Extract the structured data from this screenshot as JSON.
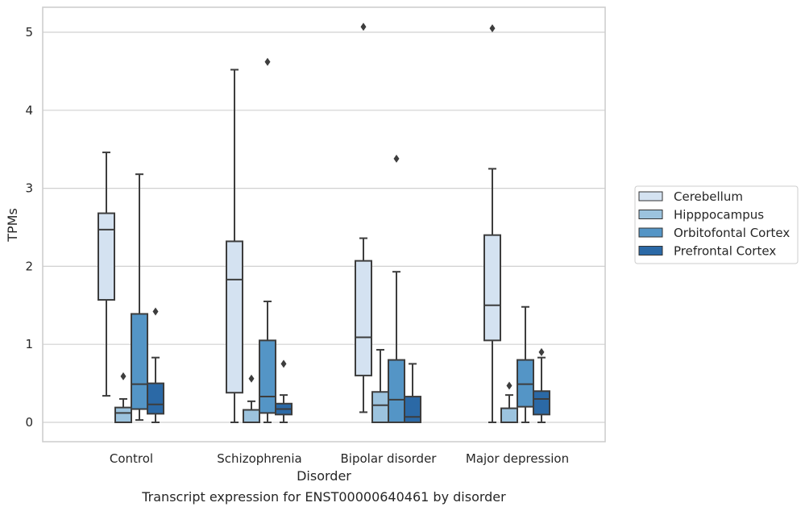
{
  "chart_data": {
    "type": "boxplot",
    "title": "",
    "caption": "Transcript expression for ENST00000640461 by disorder",
    "xlabel": "Disorder",
    "ylabel": "TPMs",
    "ylim": [
      -0.25,
      5.32
    ],
    "yticks": [
      0,
      1,
      2,
      3,
      4,
      5
    ],
    "grid": "horizontal",
    "legend_position": "right",
    "categories": [
      "Control",
      "Schizophrenia",
      "Bipolar disorder",
      "Major depression"
    ],
    "series": [
      {
        "name": "Cerebellum",
        "color": "#d4e2f1",
        "boxes": [
          {
            "whislo": 0.34,
            "q1": 1.57,
            "med": 2.47,
            "q3": 2.68,
            "whishi": 3.46,
            "fliers": []
          },
          {
            "whislo": 0.0,
            "q1": 0.38,
            "med": 1.83,
            "q3": 2.32,
            "whishi": 4.52,
            "fliers": []
          },
          {
            "whislo": 0.13,
            "q1": 0.6,
            "med": 1.09,
            "q3": 2.07,
            "whishi": 2.36,
            "fliers": [
              5.07
            ]
          },
          {
            "whislo": 0.0,
            "q1": 1.05,
            "med": 1.5,
            "q3": 2.4,
            "whishi": 3.25,
            "fliers": [
              5.05
            ]
          }
        ]
      },
      {
        "name": "Hipppocampus",
        "color": "#9cc3de",
        "boxes": [
          {
            "whislo": 0.0,
            "q1": 0.0,
            "med": 0.12,
            "q3": 0.19,
            "whishi": 0.3,
            "fliers": [
              0.59
            ]
          },
          {
            "whislo": 0.0,
            "q1": 0.0,
            "med": 0.0,
            "q3": 0.16,
            "whishi": 0.27,
            "fliers": [
              0.56
            ]
          },
          {
            "whislo": 0.0,
            "q1": 0.0,
            "med": 0.22,
            "q3": 0.39,
            "whishi": 0.93,
            "fliers": []
          },
          {
            "whislo": 0.0,
            "q1": 0.0,
            "med": 0.0,
            "q3": 0.18,
            "whishi": 0.35,
            "fliers": [
              0.47
            ]
          }
        ]
      },
      {
        "name": "Orbitofontal Cortex",
        "color": "#5495c6",
        "boxes": [
          {
            "whislo": 0.03,
            "q1": 0.17,
            "med": 0.49,
            "q3": 1.39,
            "whishi": 3.18,
            "fliers": []
          },
          {
            "whislo": 0.0,
            "q1": 0.12,
            "med": 0.33,
            "q3": 1.05,
            "whishi": 1.55,
            "fliers": [
              4.62
            ]
          },
          {
            "whislo": 0.0,
            "q1": 0.0,
            "med": 0.29,
            "q3": 0.8,
            "whishi": 1.93,
            "fliers": [
              3.38
            ]
          },
          {
            "whislo": 0.0,
            "q1": 0.2,
            "med": 0.49,
            "q3": 0.8,
            "whishi": 1.48,
            "fliers": []
          }
        ]
      },
      {
        "name": "Prefrontal Cortex",
        "color": "#2b69a6",
        "boxes": [
          {
            "whislo": 0.0,
            "q1": 0.11,
            "med": 0.23,
            "q3": 0.5,
            "whishi": 0.83,
            "fliers": [
              1.42
            ]
          },
          {
            "whislo": 0.0,
            "q1": 0.1,
            "med": 0.17,
            "q3": 0.24,
            "whishi": 0.35,
            "fliers": [
              0.75
            ]
          },
          {
            "whislo": 0.0,
            "q1": 0.0,
            "med": 0.07,
            "q3": 0.33,
            "whishi": 0.75,
            "fliers": []
          },
          {
            "whislo": 0.0,
            "q1": 0.1,
            "med": 0.3,
            "q3": 0.4,
            "whishi": 0.83,
            "fliers": [
              0.9
            ]
          }
        ]
      }
    ]
  }
}
